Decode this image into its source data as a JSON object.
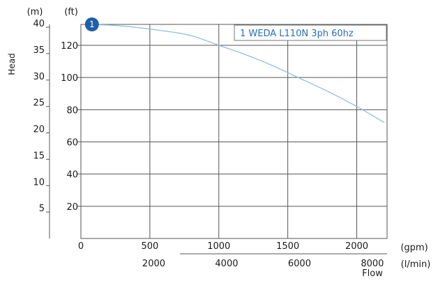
{
  "chart_data": {
    "type": "line",
    "legend": "1 WEDA L110N 3ph 60hz",
    "marker_label": "1",
    "ylabel": "Head",
    "xlabel": "Flow",
    "y_unit_left": "(m)",
    "y_unit_right": "(ft)",
    "x_unit_top": "(gpm)",
    "x_unit_bottom": "(l/min)",
    "x_gpm_ticks": [
      "0",
      "500",
      "1000",
      "1500",
      "2000"
    ],
    "x_lmin_ticks": [
      "2000",
      "4000",
      "6000",
      "8000"
    ],
    "y_ft_ticks": [
      "20",
      "40",
      "60",
      "80",
      "100",
      "120"
    ],
    "y_m_ticks": [
      "5",
      "10",
      "15",
      "20",
      "25",
      "30",
      "35",
      "40"
    ],
    "x_range_gpm": [
      0,
      2220
    ],
    "y_range_ft": [
      0,
      133
    ],
    "grid": true,
    "legend_position": "top-right",
    "line_color": "#8fbfe0",
    "marker_color": "#1f5fa8",
    "series": [
      {
        "x": [
          80,
          300,
          600,
          800,
          1000,
          1200,
          1400,
          1600,
          1800,
          2000,
          2200
        ],
        "y": [
          133,
          132,
          129,
          126,
          120,
          114,
          107,
          99,
          91,
          82,
          72
        ]
      }
    ]
  }
}
